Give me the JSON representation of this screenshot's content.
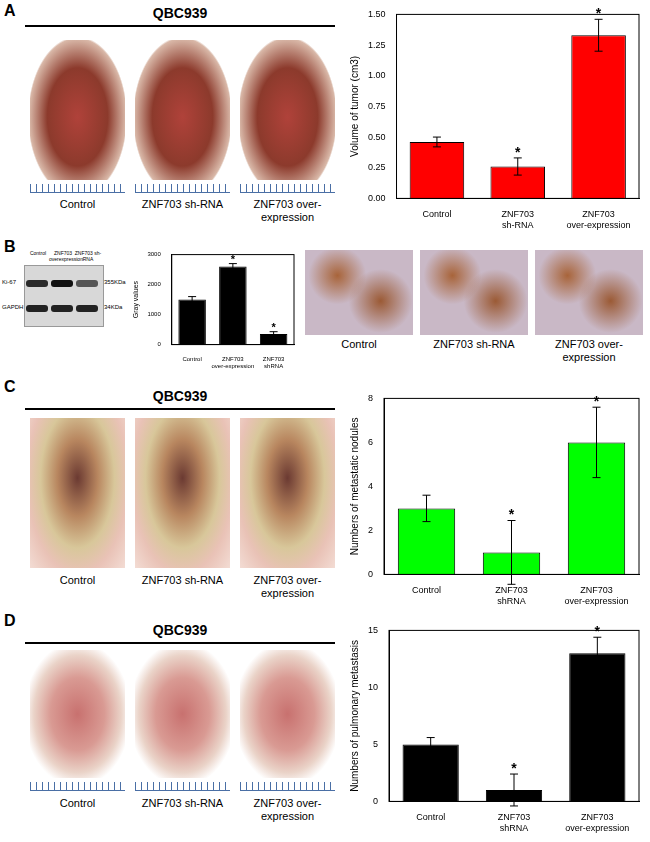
{
  "chart_data": [
    {
      "type": "bar",
      "ylabel": "Volume of tumor (cm3)",
      "categories": [
        "Control",
        "ZNF703 sh-RNA",
        "ZNF703 over-expression"
      ],
      "values": [
        0.46,
        0.26,
        1.33
      ],
      "errors": [
        0.04,
        0.07,
        0.13
      ],
      "annotations": [
        {
          "index": 1,
          "text": "*"
        },
        {
          "index": 2,
          "text": "*"
        }
      ],
      "color": "#ff0000",
      "ylim": [
        0,
        1.5
      ],
      "yticks": [
        {
          "value": 0,
          "label": "0.00"
        },
        0.25,
        {
          "value": 0.5,
          "label": "0.50"
        },
        0.75,
        {
          "value": 1,
          "label": "1.00"
        },
        1.25,
        {
          "value": 1.5,
          "label": "1.50"
        }
      ],
      "grid": false
    },
    {
      "type": "bar",
      "ylabel": "Gray values",
      "categories": [
        "Control",
        "ZNF703 over-expression",
        "ZNF703 shRNA"
      ],
      "values": [
        1500,
        2600,
        350
      ],
      "errors": [
        100,
        100,
        80
      ],
      "annotations": [
        {
          "index": 1,
          "text": "*"
        },
        {
          "index": 2,
          "text": "*"
        }
      ],
      "color": "#000000",
      "ylim": [
        0,
        3000
      ],
      "yticks": [
        0,
        1000,
        2000,
        3000
      ],
      "grid": false
    },
    {
      "type": "bar",
      "ylabel": "Numbers of metastatic nodules",
      "categories": [
        "Control",
        "ZNF703 shRNA",
        "ZNF703 over-expression"
      ],
      "values": [
        3,
        1,
        6
      ],
      "errors": [
        0.6,
        1.45,
        1.6
      ],
      "annotations": [
        {
          "index": 1,
          "text": "*"
        },
        {
          "index": 2,
          "text": "*"
        }
      ],
      "color": "#00ff00",
      "ylim": [
        0,
        8
      ],
      "yticks": [
        0,
        2,
        4,
        6,
        8
      ],
      "grid": false
    },
    {
      "type": "bar",
      "ylabel": "Numbers of pulmonary metastasis",
      "categories": [
        "Control",
        "ZNF703 shRNA",
        "ZNF703 over-expression"
      ],
      "values": [
        5,
        1,
        13
      ],
      "errors": [
        0.6,
        1.4,
        1.4
      ],
      "annotations": [
        {
          "index": 1,
          "text": "*"
        },
        {
          "index": 2,
          "text": "*"
        }
      ],
      "color": "#000000",
      "ylim": [
        0,
        15
      ],
      "yticks": [
        0,
        5,
        10,
        15
      ],
      "grid": false
    }
  ],
  "figure": {
    "panels": [
      {
        "label": "A",
        "header": "QBC939",
        "photo_captions": [
          "Control",
          "ZNF703 sh-RNA",
          "ZNF703 over-expression"
        ]
      },
      {
        "label": "B",
        "blot": {
          "lanes": [
            "Control",
            "ZNF703 overexpression",
            "ZNF703 sh-RNA"
          ],
          "bands": [
            {
              "name": "Ki-67",
              "size": "355KDa"
            },
            {
              "name": "GAPDH",
              "size": "34KDa"
            }
          ]
        },
        "ihc_captions": [
          "Control",
          "ZNF703 sh-RNA",
          "ZNF703 over-expression"
        ]
      },
      {
        "label": "C",
        "header": "QBC939",
        "photo_captions": [
          "Control",
          "ZNF703 sh-RNA",
          "ZNF703 over-expression"
        ]
      },
      {
        "label": "D",
        "header": "QBC939",
        "photo_captions": [
          "Control",
          "ZNF703 sh-RNA",
          "ZNF703 over-expression"
        ]
      }
    ]
  }
}
